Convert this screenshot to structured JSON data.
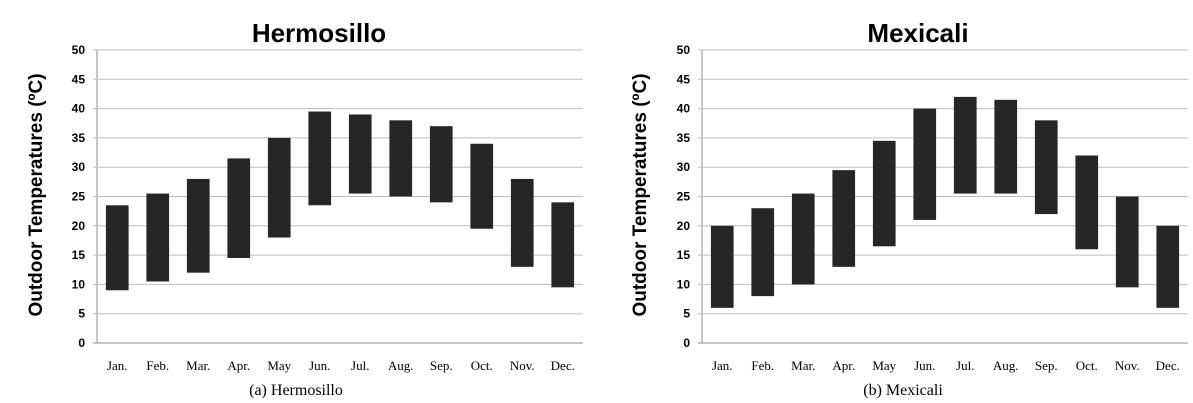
{
  "chart_data": [
    {
      "type": "bar",
      "subtype": "floating-range",
      "title": "Hermosillo",
      "ylabel": "Outdoor Temperatures (ºC)",
      "caption": "(a) Hermosillo",
      "ylim": [
        0,
        50
      ],
      "yticks": [
        0,
        5,
        10,
        15,
        20,
        25,
        30,
        35,
        40,
        45,
        50
      ],
      "grid": true,
      "bar_color": "#262626",
      "categories": [
        "Jan.",
        "Feb.",
        "Mar.",
        "Apr.",
        "May",
        "Jun.",
        "Jul.",
        "Aug.",
        "Sep.",
        "Oct.",
        "Nov.",
        "Dec."
      ],
      "low": [
        9,
        10.5,
        12,
        14.5,
        18,
        23.5,
        25.5,
        25,
        24,
        19.5,
        13,
        9.5
      ],
      "high": [
        23.5,
        25.5,
        28,
        31.5,
        35,
        39.5,
        39,
        38,
        37,
        34,
        28,
        24
      ]
    },
    {
      "type": "bar",
      "subtype": "floating-range",
      "title": "Mexicali",
      "ylabel": "Outdoor Temperatures (ºC)",
      "caption": "(b) Mexicali",
      "ylim": [
        0,
        50
      ],
      "yticks": [
        0,
        5,
        10,
        15,
        20,
        25,
        30,
        35,
        40,
        45,
        50
      ],
      "grid": true,
      "bar_color": "#262626",
      "categories": [
        "Jan.",
        "Feb.",
        "Mar.",
        "Apr.",
        "May",
        "Jun.",
        "Jul.",
        "Aug.",
        "Sep.",
        "Oct.",
        "Nov.",
        "Dec."
      ],
      "low": [
        6,
        8,
        10,
        13,
        16.5,
        21,
        25.5,
        25.5,
        22,
        16,
        9.5,
        6
      ],
      "high": [
        20,
        23,
        25.5,
        29.5,
        34.5,
        40,
        42,
        41.5,
        38,
        32,
        25,
        20
      ]
    }
  ]
}
